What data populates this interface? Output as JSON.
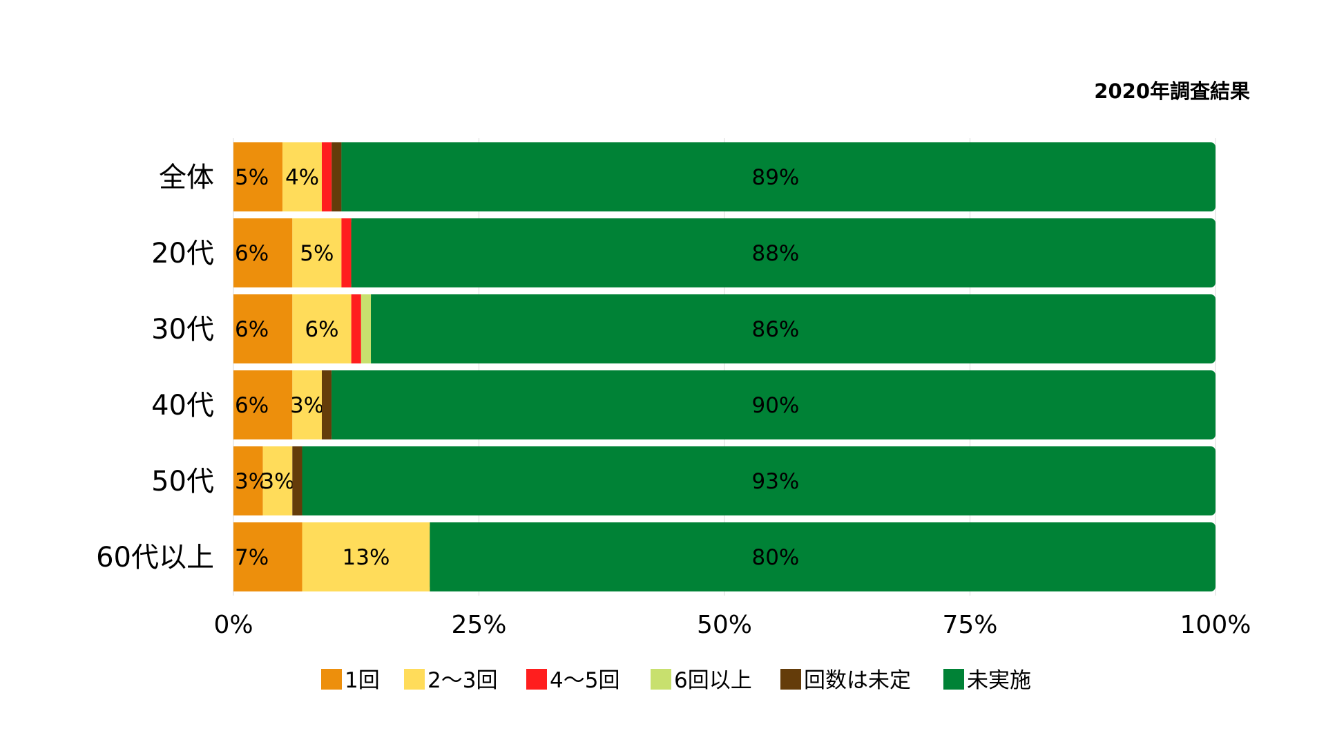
{
  "chart_data": {
    "type": "bar",
    "orientation": "horizontal",
    "stacked": true,
    "title": "2020年調査結果",
    "title_position": "top-right",
    "categories": [
      "全体",
      "20代",
      "30代",
      "40代",
      "50代",
      "60代以上"
    ],
    "series": [
      {
        "name": "1回",
        "color": "#ED8F0C",
        "values": [
          5,
          6,
          6,
          6,
          3,
          7
        ],
        "labels": [
          "5%",
          "6%",
          "6%",
          "6%",
          "3%",
          "7%"
        ]
      },
      {
        "name": "2〜3回",
        "color": "#FFDC5A",
        "values": [
          4,
          5,
          6,
          3,
          3,
          13
        ],
        "labels": [
          "4%",
          "5%",
          "6%",
          "3%",
          "3%",
          "13%"
        ]
      },
      {
        "name": "4〜5回",
        "color": "#FF1E1E",
        "values": [
          1,
          1,
          1,
          0,
          0,
          0
        ],
        "labels": [
          "",
          "",
          "",
          "",
          "",
          ""
        ]
      },
      {
        "name": "6回以上",
        "color": "#C8E06E",
        "values": [
          0,
          0,
          1,
          0,
          0,
          0
        ],
        "labels": [
          "",
          "",
          "",
          "",
          "",
          ""
        ]
      },
      {
        "name": "回数は未定",
        "color": "#643C0A",
        "values": [
          1,
          0,
          0,
          1,
          1,
          0
        ],
        "labels": [
          "",
          "",
          "",
          "",
          "",
          ""
        ]
      },
      {
        "name": "未実施",
        "color": "#008236",
        "values": [
          89,
          88,
          86,
          90,
          93,
          80
        ],
        "labels": [
          "89%",
          "88%",
          "86%",
          "90%",
          "93%",
          "80%"
        ]
      }
    ],
    "xlim": [
      0,
      100
    ],
    "x_ticks": [
      0,
      25,
      50,
      75,
      100
    ],
    "x_tick_labels": [
      "0%",
      "25%",
      "50%",
      "75%",
      "100%"
    ],
    "grid": true,
    "legend_position": "bottom"
  }
}
